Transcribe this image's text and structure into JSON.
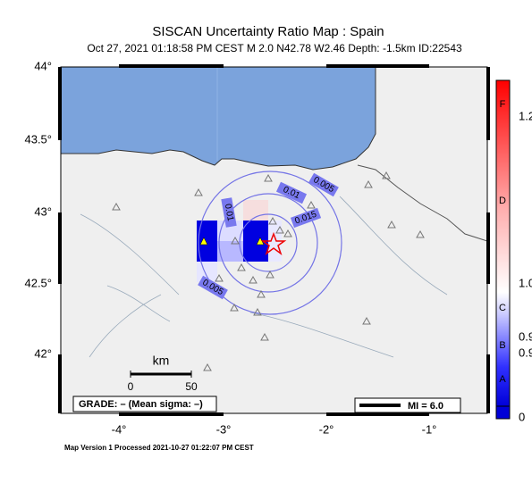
{
  "header": {
    "title": "SISCAN Uncertainty Ratio Map : Spain",
    "subtitle": "Oct 27, 2021 01:18:58 PM CEST   M 2.0   N42.78 W2.46   Depth: -1.5km   ID:22543"
  },
  "map": {
    "lat_labels": [
      "44°",
      "43.5°",
      "43°",
      "42.5°",
      "42°"
    ],
    "lon_labels": [
      "-4°",
      "-3°",
      "-2°",
      "-1°"
    ],
    "contour_labels": [
      "0.005",
      "0.01",
      "0.015",
      "0.01",
      "0.005"
    ],
    "scale": {
      "unit": "km",
      "start": "0",
      "end": "50"
    },
    "grade": "GRADE: – (Mean sigma: –)",
    "legend": "MI = 6.0"
  },
  "colorbar": {
    "grades": [
      "F",
      "D",
      "C",
      "B",
      "A"
    ],
    "ticks": [
      "1.2",
      "1.0",
      "0.9",
      "0.9",
      "0"
    ]
  },
  "footer": "Map Version 1 Processed 2021-10-27 01:22:07 PM CEST"
}
